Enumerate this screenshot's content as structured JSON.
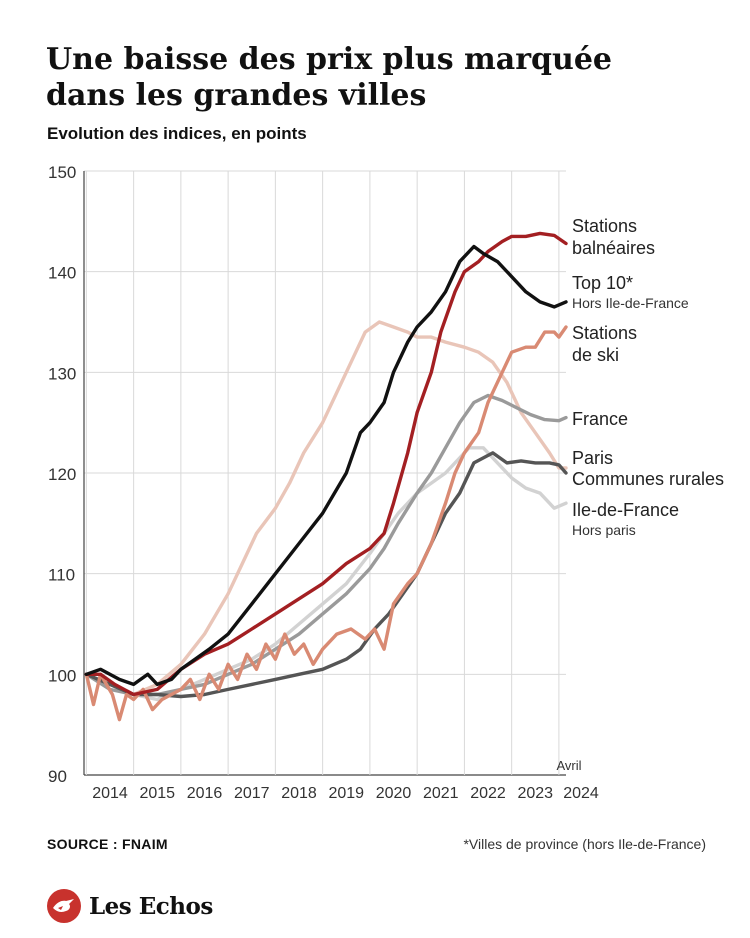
{
  "header": {
    "title": "Une baisse des prix plus marquée dans les grandes villes",
    "subtitle": "Evolution des indices, en points"
  },
  "footer": {
    "source": "SOURCE : FNAIM",
    "footnote": "*Villes de province (hors Ile-de-France)",
    "brand": "Les Echos"
  },
  "chart_data": {
    "type": "line",
    "x_tick_labels": [
      "2014",
      "2015",
      "2016",
      "2017",
      "2018",
      "2019",
      "2020",
      "2021",
      "2022",
      "2023",
      "2024"
    ],
    "x_range": [
      2013.95,
      2024.15
    ],
    "ylim": [
      90,
      150
    ],
    "y_ticks": [
      90,
      100,
      110,
      120,
      130,
      140,
      150
    ],
    "grid": "vertical and horizontal",
    "end_annotation": "Avril",
    "series": [
      {
        "name": "Stations balnéaires",
        "color": "#a31f22",
        "label_lines": [
          "Stations",
          "balnéaires"
        ],
        "label_small": "",
        "points": [
          [
            2014.0,
            100
          ],
          [
            2014.3,
            100
          ],
          [
            2014.6,
            99
          ],
          [
            2015.0,
            98
          ],
          [
            2015.5,
            98.5
          ],
          [
            2016.0,
            100.5
          ],
          [
            2016.5,
            102
          ],
          [
            2017.0,
            103
          ],
          [
            2017.5,
            104.5
          ],
          [
            2018.0,
            106
          ],
          [
            2018.5,
            107.5
          ],
          [
            2019.0,
            109
          ],
          [
            2019.5,
            111
          ],
          [
            2020.0,
            112.5
          ],
          [
            2020.3,
            114
          ],
          [
            2020.5,
            117
          ],
          [
            2020.8,
            122
          ],
          [
            2021.0,
            126
          ],
          [
            2021.3,
            130
          ],
          [
            2021.5,
            134
          ],
          [
            2021.8,
            138
          ],
          [
            2022.0,
            140
          ],
          [
            2022.3,
            141
          ],
          [
            2022.5,
            142
          ],
          [
            2022.8,
            143
          ],
          [
            2023.0,
            143.5
          ],
          [
            2023.3,
            143.5
          ],
          [
            2023.6,
            143.8
          ],
          [
            2023.9,
            143.6
          ],
          [
            2024.15,
            142.8
          ]
        ]
      },
      {
        "name": "Top 10*",
        "color": "#111111",
        "label_lines": [
          "Top 10*"
        ],
        "label_small": "Hors Ile-de-France",
        "points": [
          [
            2014.0,
            100
          ],
          [
            2014.3,
            100.5
          ],
          [
            2014.7,
            99.5
          ],
          [
            2015.0,
            99
          ],
          [
            2015.3,
            100
          ],
          [
            2015.5,
            99
          ],
          [
            2015.8,
            99.5
          ],
          [
            2016.0,
            100.5
          ],
          [
            2016.3,
            101.5
          ],
          [
            2016.6,
            102.5
          ],
          [
            2017.0,
            104
          ],
          [
            2017.5,
            107
          ],
          [
            2018.0,
            110
          ],
          [
            2018.5,
            113
          ],
          [
            2019.0,
            116
          ],
          [
            2019.5,
            120
          ],
          [
            2019.8,
            124
          ],
          [
            2020.0,
            125
          ],
          [
            2020.3,
            127
          ],
          [
            2020.5,
            130
          ],
          [
            2020.8,
            133
          ],
          [
            2021.0,
            134.5
          ],
          [
            2021.3,
            136
          ],
          [
            2021.6,
            138
          ],
          [
            2021.9,
            141
          ],
          [
            2022.2,
            142.5
          ],
          [
            2022.4,
            141.8
          ],
          [
            2022.7,
            141
          ],
          [
            2023.0,
            139.5
          ],
          [
            2023.3,
            138
          ],
          [
            2023.6,
            137
          ],
          [
            2023.9,
            136.5
          ],
          [
            2024.15,
            137
          ]
        ]
      },
      {
        "name": "Stations de ski",
        "color": "#d98a73",
        "label_lines": [
          "Stations",
          "de ski"
        ],
        "label_small": "",
        "points": [
          [
            2014.0,
            100
          ],
          [
            2014.15,
            97
          ],
          [
            2014.3,
            100
          ],
          [
            2014.55,
            98
          ],
          [
            2014.7,
            95.5
          ],
          [
            2014.85,
            98
          ],
          [
            2015.0,
            97.5
          ],
          [
            2015.2,
            98.5
          ],
          [
            2015.4,
            96.5
          ],
          [
            2015.6,
            97.5
          ],
          [
            2015.8,
            98
          ],
          [
            2016.0,
            98.5
          ],
          [
            2016.2,
            99.5
          ],
          [
            2016.4,
            97.5
          ],
          [
            2016.6,
            100
          ],
          [
            2016.8,
            98.5
          ],
          [
            2017.0,
            101
          ],
          [
            2017.2,
            99.5
          ],
          [
            2017.4,
            102
          ],
          [
            2017.6,
            100.5
          ],
          [
            2017.8,
            103
          ],
          [
            2018.0,
            101.5
          ],
          [
            2018.2,
            104
          ],
          [
            2018.4,
            102
          ],
          [
            2018.6,
            103
          ],
          [
            2018.8,
            101
          ],
          [
            2019.0,
            102.5
          ],
          [
            2019.3,
            104
          ],
          [
            2019.6,
            104.5
          ],
          [
            2019.9,
            103.5
          ],
          [
            2020.1,
            104.5
          ],
          [
            2020.3,
            102.5
          ],
          [
            2020.5,
            107
          ],
          [
            2020.8,
            109
          ],
          [
            2021.0,
            110
          ],
          [
            2021.3,
            113
          ],
          [
            2021.6,
            117
          ],
          [
            2021.8,
            120
          ],
          [
            2022.0,
            122
          ],
          [
            2022.3,
            124
          ],
          [
            2022.5,
            127
          ],
          [
            2022.8,
            130
          ],
          [
            2023.0,
            132
          ],
          [
            2023.3,
            132.5
          ],
          [
            2023.5,
            132.5
          ],
          [
            2023.7,
            134
          ],
          [
            2023.9,
            134
          ],
          [
            2024.0,
            133.5
          ],
          [
            2024.15,
            134.5
          ]
        ]
      },
      {
        "name": "France",
        "color": "#9a9a9a",
        "label_lines": [
          "France"
        ],
        "label_small": "",
        "points": [
          [
            2014.0,
            100
          ],
          [
            2014.5,
            98.5
          ],
          [
            2015.0,
            98
          ],
          [
            2015.5,
            98
          ],
          [
            2016.0,
            98.5
          ],
          [
            2016.5,
            99
          ],
          [
            2017.0,
            100
          ],
          [
            2017.5,
            101
          ],
          [
            2018.0,
            102.5
          ],
          [
            2018.5,
            104
          ],
          [
            2019.0,
            106
          ],
          [
            2019.5,
            108
          ],
          [
            2020.0,
            110.5
          ],
          [
            2020.3,
            112.5
          ],
          [
            2020.6,
            115
          ],
          [
            2021.0,
            118
          ],
          [
            2021.3,
            120
          ],
          [
            2021.6,
            122.5
          ],
          [
            2021.9,
            125
          ],
          [
            2022.2,
            127
          ],
          [
            2022.5,
            127.7
          ],
          [
            2022.8,
            127.2
          ],
          [
            2023.1,
            126.5
          ],
          [
            2023.4,
            125.8
          ],
          [
            2023.7,
            125.3
          ],
          [
            2024.0,
            125.2
          ],
          [
            2024.15,
            125.5
          ]
        ]
      },
      {
        "name": "Paris",
        "color": "#e9c5b8",
        "label_lines": [
          "Paris"
        ],
        "label_small": "",
        "points": [
          [
            2014.0,
            100
          ],
          [
            2014.5,
            99
          ],
          [
            2015.0,
            98
          ],
          [
            2015.5,
            99
          ],
          [
            2016.0,
            101
          ],
          [
            2016.5,
            104
          ],
          [
            2017.0,
            108
          ],
          [
            2017.3,
            111
          ],
          [
            2017.6,
            114
          ],
          [
            2018.0,
            116.5
          ],
          [
            2018.3,
            119
          ],
          [
            2018.6,
            122
          ],
          [
            2019.0,
            125
          ],
          [
            2019.3,
            128
          ],
          [
            2019.6,
            131
          ],
          [
            2019.9,
            134
          ],
          [
            2020.2,
            135
          ],
          [
            2020.5,
            134.5
          ],
          [
            2020.8,
            134
          ],
          [
            2021.0,
            133.5
          ],
          [
            2021.3,
            133.5
          ],
          [
            2021.6,
            133
          ],
          [
            2022.0,
            132.5
          ],
          [
            2022.3,
            132
          ],
          [
            2022.6,
            131
          ],
          [
            2022.9,
            129
          ],
          [
            2023.2,
            126
          ],
          [
            2023.5,
            124
          ],
          [
            2023.8,
            122
          ],
          [
            2024.0,
            120.5
          ],
          [
            2024.15,
            120.5
          ]
        ]
      },
      {
        "name": "Communes rurales",
        "color": "#555555",
        "label_lines": [
          "Communes rurales"
        ],
        "label_small": "",
        "points": [
          [
            2014.0,
            100
          ],
          [
            2014.5,
            99
          ],
          [
            2015.0,
            98
          ],
          [
            2015.5,
            98
          ],
          [
            2016.0,
            97.8
          ],
          [
            2016.5,
            98
          ],
          [
            2017.0,
            98.5
          ],
          [
            2017.5,
            99
          ],
          [
            2018.0,
            99.5
          ],
          [
            2018.5,
            100
          ],
          [
            2019.0,
            100.5
          ],
          [
            2019.5,
            101.5
          ],
          [
            2019.8,
            102.5
          ],
          [
            2020.1,
            104.5
          ],
          [
            2020.4,
            106
          ],
          [
            2020.7,
            108
          ],
          [
            2021.0,
            110
          ],
          [
            2021.3,
            113
          ],
          [
            2021.6,
            116
          ],
          [
            2021.9,
            118
          ],
          [
            2022.2,
            121
          ],
          [
            2022.6,
            122
          ],
          [
            2022.9,
            121
          ],
          [
            2023.2,
            121.2
          ],
          [
            2023.5,
            121
          ],
          [
            2023.8,
            121
          ],
          [
            2024.0,
            120.8
          ],
          [
            2024.15,
            120
          ]
        ]
      },
      {
        "name": "Ile-de-France",
        "color": "#d2d2d2",
        "label_lines": [
          "Ile-de-France"
        ],
        "label_small": "Hors paris",
        "points": [
          [
            2014.0,
            100
          ],
          [
            2014.5,
            99
          ],
          [
            2015.0,
            98
          ],
          [
            2015.5,
            97.5
          ],
          [
            2016.0,
            98.5
          ],
          [
            2016.5,
            99.5
          ],
          [
            2017.0,
            100.5
          ],
          [
            2017.5,
            101.5
          ],
          [
            2018.0,
            103
          ],
          [
            2018.5,
            105
          ],
          [
            2019.0,
            107
          ],
          [
            2019.5,
            109
          ],
          [
            2020.0,
            112
          ],
          [
            2020.3,
            114
          ],
          [
            2020.6,
            116
          ],
          [
            2021.0,
            118
          ],
          [
            2021.3,
            119
          ],
          [
            2021.6,
            120
          ],
          [
            2021.9,
            121.5
          ],
          [
            2022.1,
            122.5
          ],
          [
            2022.4,
            122.5
          ],
          [
            2022.7,
            121
          ],
          [
            2023.0,
            119.5
          ],
          [
            2023.3,
            118.5
          ],
          [
            2023.6,
            118
          ],
          [
            2023.9,
            116.5
          ],
          [
            2024.15,
            117
          ]
        ]
      }
    ]
  }
}
